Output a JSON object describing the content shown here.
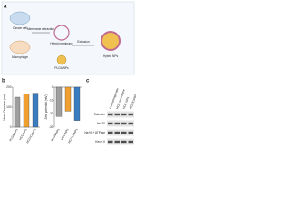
{
  "panel_a": {
    "label": "a",
    "texts": [
      "Cancer cell",
      "Macrophage",
      "Membrane extraction",
      "Hybrid membrane",
      "PLGA NPs",
      "Extrusion",
      "Hybrid NPs"
    ]
  },
  "panel_b": {
    "label": "b",
    "charts": [
      {
        "type": "bar",
        "ylabel": "Mean Diameter (nm)",
        "categories": [
          "PLGA NPs",
          "HCC NPs",
          "HCC/CoNPs"
        ],
        "values": [
          150,
          165,
          170
        ],
        "colors": [
          "#9e9e9e",
          "#f0a030",
          "#3a7cc0"
        ],
        "ylim": [
          0,
          200
        ],
        "yticks": [
          0,
          100,
          200
        ]
      },
      {
        "type": "bar",
        "ylabel": "Zeta potential (mV)",
        "categories": [
          "PLGA NPs",
          "HCC NPs",
          "HCC/CoNPs"
        ],
        "values": [
          -22,
          -18,
          -25
        ],
        "colors": [
          "#9e9e9e",
          "#f0a030",
          "#3a7cc0"
        ],
        "ylim": [
          -30,
          0
        ],
        "yticks": [
          -30,
          -20,
          -10,
          0
        ]
      }
    ]
  },
  "panel_c": {
    "label": "c",
    "columns": [
      "Cell homogenate",
      "HCC membrane",
      "HCC NPs",
      "HCC/CoNPs"
    ],
    "rows": [
      "Calnexin",
      "Hsc70",
      "Na+/K+ ATPase",
      "Kexin II"
    ]
  }
}
